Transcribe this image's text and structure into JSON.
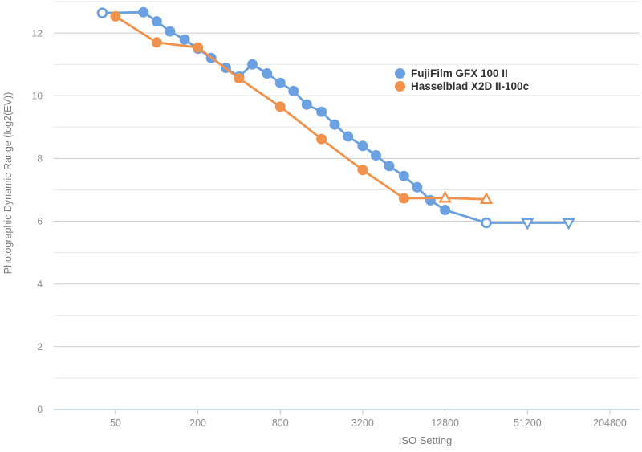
{
  "chart_data": {
    "type": "line",
    "title": "",
    "xlabel": "ISO Setting",
    "ylabel": "Photographic Dynamic Range (log2(EV))",
    "x_axis": {
      "scale": "log2",
      "min": 17.7,
      "max": 337600,
      "ticks": [
        50,
        200,
        800,
        3200,
        12800,
        51200,
        204800
      ],
      "label": "ISO Setting"
    },
    "y_axis": {
      "min": 0,
      "max": 13,
      "tick_labels": [
        0,
        2,
        4,
        6,
        8,
        10,
        12
      ],
      "minor_step": 1,
      "label": "Photographic Dynamic Range (log2(EV))"
    },
    "grid": "on",
    "legend_position": "top-right-inside",
    "series": [
      {
        "id": "fujifilm-gfx-100-ii",
        "name": "FujiFilm GFX 100 II",
        "color": "#6BA1E0",
        "marker_default": "circle",
        "points": [
          {
            "iso": 40,
            "pdr": 12.64,
            "marker": "circle-open"
          },
          {
            "iso": 80,
            "pdr": 12.66
          },
          {
            "iso": 100,
            "pdr": 12.37
          },
          {
            "iso": 125,
            "pdr": 12.05
          },
          {
            "iso": 160,
            "pdr": 11.79
          },
          {
            "iso": 200,
            "pdr": 11.5
          },
          {
            "iso": 250,
            "pdr": 11.2
          },
          {
            "iso": 320,
            "pdr": 10.89
          },
          {
            "iso": 400,
            "pdr": 10.61
          },
          {
            "iso": 500,
            "pdr": 11.0
          },
          {
            "iso": 640,
            "pdr": 10.71
          },
          {
            "iso": 800,
            "pdr": 10.41
          },
          {
            "iso": 1000,
            "pdr": 10.15
          },
          {
            "iso": 1250,
            "pdr": 9.72
          },
          {
            "iso": 1600,
            "pdr": 9.49
          },
          {
            "iso": 2000,
            "pdr": 9.08
          },
          {
            "iso": 2500,
            "pdr": 8.7
          },
          {
            "iso": 3200,
            "pdr": 8.4
          },
          {
            "iso": 4000,
            "pdr": 8.1
          },
          {
            "iso": 5000,
            "pdr": 7.76
          },
          {
            "iso": 6400,
            "pdr": 7.44
          },
          {
            "iso": 8000,
            "pdr": 7.08
          },
          {
            "iso": 10000,
            "pdr": 6.67
          },
          {
            "iso": 12800,
            "pdr": 6.36
          },
          {
            "iso": 25600,
            "pdr": 5.95,
            "marker": "circle-open"
          },
          {
            "iso": 51200,
            "pdr": 5.95,
            "marker": "triangle-down-open"
          },
          {
            "iso": 102400,
            "pdr": 5.95,
            "marker": "triangle-down-open"
          }
        ]
      },
      {
        "id": "hasselblad-x2d-ii-100c",
        "name": "Hasselblad X2D II-100c",
        "color": "#F0924B",
        "marker_default": "circle",
        "points": [
          {
            "iso": 50,
            "pdr": 12.53
          },
          {
            "iso": 100,
            "pdr": 11.7
          },
          {
            "iso": 200,
            "pdr": 11.54
          },
          {
            "iso": 400,
            "pdr": 10.55
          },
          {
            "iso": 800,
            "pdr": 9.65
          },
          {
            "iso": 1600,
            "pdr": 8.62
          },
          {
            "iso": 3200,
            "pdr": 7.63
          },
          {
            "iso": 6400,
            "pdr": 6.73
          },
          {
            "iso": 12800,
            "pdr": 6.74,
            "marker": "triangle-up-open"
          },
          {
            "iso": 25600,
            "pdr": 6.7,
            "marker": "triangle-up-open"
          }
        ]
      }
    ],
    "colors": {
      "background": "#ffffff",
      "grid_major": "#cbcdd0",
      "grid_minor": "#e5e7e9",
      "axis_line": "#cfdfe9",
      "tick_mark": "#bfc3c6",
      "tick_label": "#8c8c8c",
      "axis_title": "#7d7d7d",
      "legend_text": "#333333"
    }
  }
}
